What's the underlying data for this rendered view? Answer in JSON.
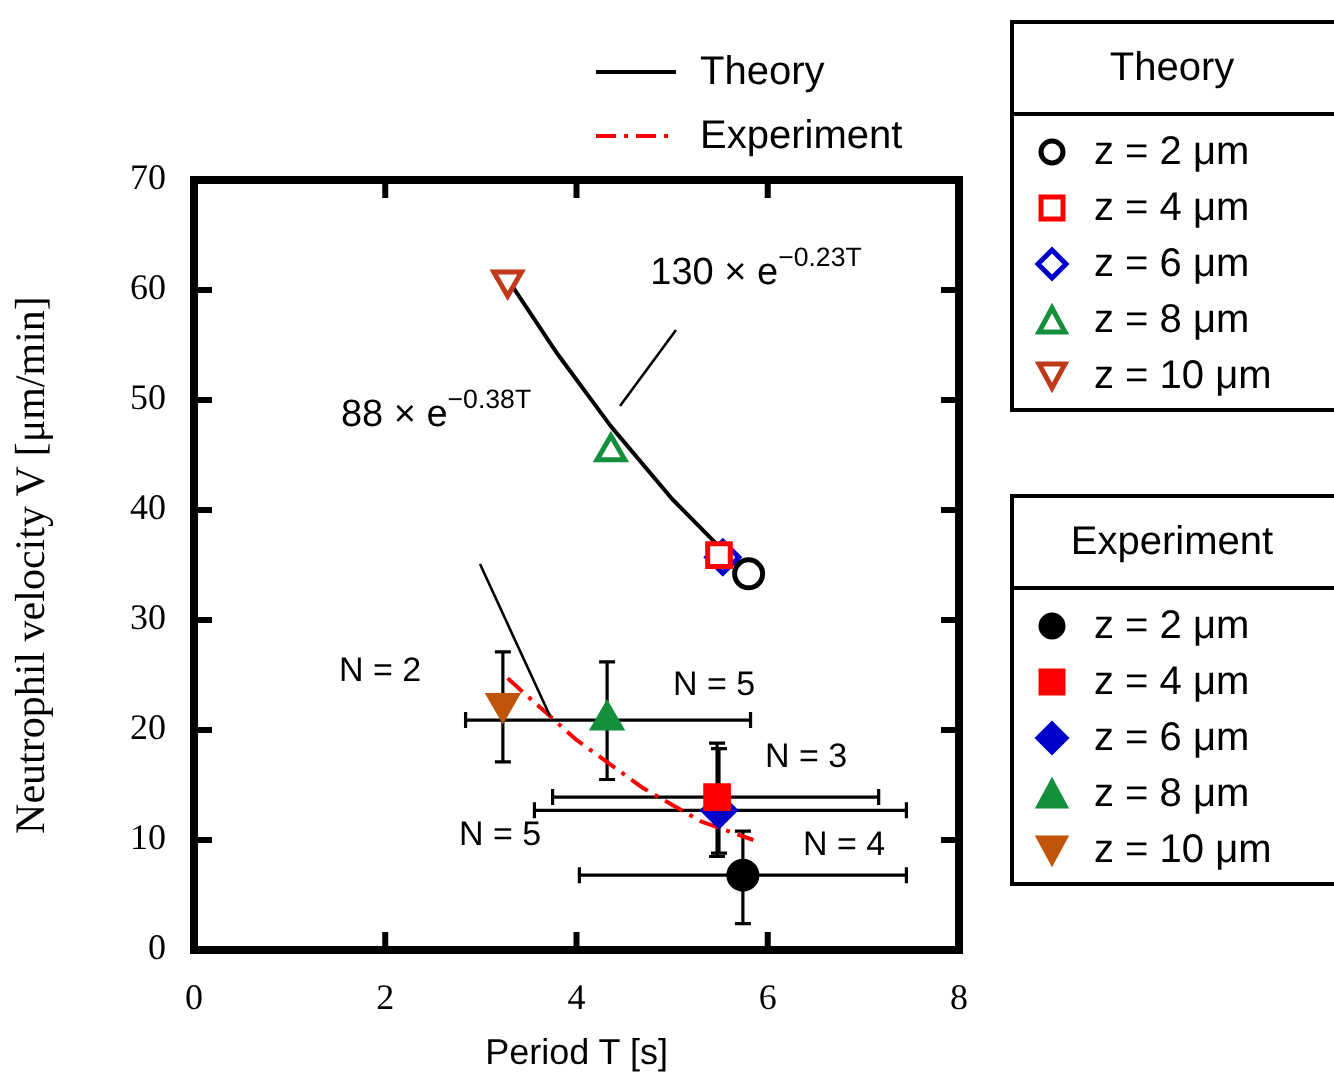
{
  "chart_data": {
    "type": "scatter",
    "xlabel": "Period T [s]",
    "ylabel": "Neutrophil velocity V [μm/min]",
    "xlim": [
      0,
      8
    ],
    "xticks": [
      0,
      2,
      4,
      6,
      8
    ],
    "ylim": [
      0,
      70
    ],
    "yticks": [
      0,
      10,
      20,
      30,
      40,
      50,
      60,
      70
    ],
    "grid": false,
    "legend": "right",
    "annotations": [
      "130 × e$^{−0.23T}$",
      "88 × e$^{−0.38T}$",
      "N = 2",
      "N = 5",
      "N = 3",
      "N = 5",
      "N = 4"
    ],
    "series": [
      {
        "name": "Theory",
        "type": "line",
        "color": "#000000",
        "marker": "none",
        "line_style": "solid",
        "x": [
          3.28,
          3.8,
          4.36,
          5.0,
          5.5
        ],
        "values": [
          61.0,
          54.2,
          47.6,
          41.0,
          36.6
        ]
      },
      {
        "name": "Experiment",
        "type": "line",
        "color": "#ff0000",
        "marker": "none",
        "line_style": "dashed",
        "x": [
          3.28,
          4.0,
          4.7,
          5.3,
          5.85
        ],
        "values": [
          24.7,
          19.1,
          14.7,
          11.7,
          10.0
        ]
      },
      {
        "name": "z = 2 μm",
        "color": "#000000",
        "marker": "circle",
        "x": [
          5.8
        ],
        "values": [
          34.2
        ]
      },
      {
        "name": "z = 4 μm",
        "color": "#ff0000",
        "marker": "square",
        "x": [
          5.49
        ],
        "values": [
          35.9
        ]
      },
      {
        "name": "z = 6 μm",
        "color": "#0000cc",
        "marker": "diamond",
        "x": [
          5.53
        ],
        "values": [
          35.7
        ]
      },
      {
        "name": "z = 8 μm",
        "color": "#14903c",
        "marker": "triangle",
        "x": [
          4.36
        ],
        "values": [
          45.3
        ]
      },
      {
        "name": "z = 10 μm",
        "color": "#c0391b",
        "marker": "triangle-down",
        "x": [
          3.28
        ],
        "values": [
          60.9
        ]
      },
      {
        "name": "z = 2 μm",
        "color": "#000000",
        "marker": "circle",
        "x": [
          5.74
        ],
        "values": [
          6.8
        ],
        "errors": [
          [
            2.4,
            10.8
          ]
        ],
        "xerrors": [
          [
            4.03,
            7.45
          ]
        ]
      },
      {
        "name": "z = 4 μm",
        "color": "#ff0000",
        "marker": "square",
        "x": [
          5.47
        ],
        "values": [
          13.9
        ],
        "errors": [
          [
            8.5,
            18.8
          ]
        ],
        "xerrors": [
          [
            3.75,
            7.16
          ]
        ]
      },
      {
        "name": "z = 6 μm",
        "color": "#0000cc",
        "marker": "diamond",
        "x": [
          5.49
        ],
        "values": [
          12.7
        ],
        "errors": [
          [
            8.8,
            18.3
          ]
        ],
        "xerrors": [
          [
            3.56,
            7.45
          ]
        ]
      },
      {
        "name": "z = 8 μm",
        "color": "#14903c",
        "marker": "triangle",
        "x": [
          4.32
        ],
        "values": [
          20.9
        ],
        "errors": [
          [
            15.5,
            26.2
          ]
        ],
        "xerrors": [
          [
            2.84,
            5.82
          ]
        ]
      },
      {
        "name": "z = 10 μm",
        "color": "#c0550a",
        "marker": "triangle-down",
        "x": [
          3.23
        ],
        "values": [
          22.4
        ],
        "errors": [
          [
            17.1,
            27.1
          ]
        ],
        "xerrors": [
          null
        ]
      }
    ]
  }
}
